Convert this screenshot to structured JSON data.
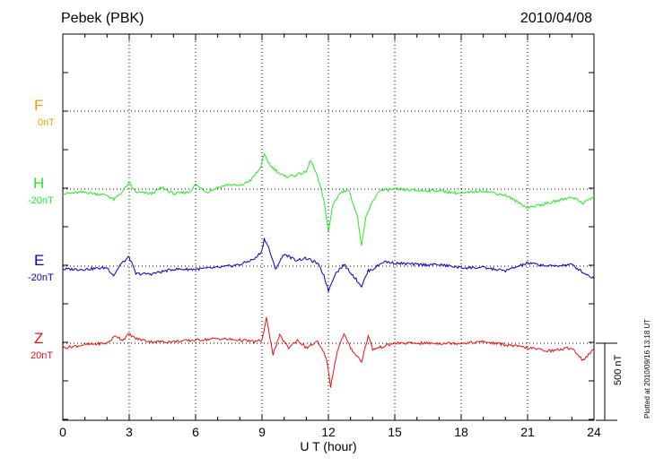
{
  "header": {
    "station": "Pebek (PBK)",
    "date": "2010/04/08"
  },
  "x_axis": {
    "label": "U T (hour)",
    "ticks": [
      "0",
      "3",
      "6",
      "9",
      "12",
      "15",
      "18",
      "21",
      "24"
    ]
  },
  "scale": {
    "label": "500 nT",
    "value_nT": 500
  },
  "footer": {
    "plotted": "Plotted at 2010/09/16 13:18 UT"
  },
  "colors": {
    "F": "#f0a000",
    "H": "#22ee22",
    "E": "#0000cc",
    "Z": "#ee1111"
  },
  "chart_data": {
    "type": "line",
    "xlabel": "U T (hour)",
    "xlim": [
      0,
      24
    ],
    "series": [
      {
        "name": "F",
        "baseline": "0nT",
        "values": []
      },
      {
        "name": "H",
        "baseline": "-20nT",
        "points": [
          [
            0,
            -30
          ],
          [
            1,
            -20
          ],
          [
            2,
            -40
          ],
          [
            2.3,
            -70
          ],
          [
            2.6,
            -30
          ],
          [
            3,
            40
          ],
          [
            3.3,
            -20
          ],
          [
            4,
            -30
          ],
          [
            4.5,
            10
          ],
          [
            5,
            -30
          ],
          [
            5.7,
            -20
          ],
          [
            6,
            30
          ],
          [
            6.5,
            -20
          ],
          [
            7,
            10
          ],
          [
            7.5,
            30
          ],
          [
            8,
            20
          ],
          [
            8.5,
            60
          ],
          [
            8.9,
            130
          ],
          [
            9.1,
            220
          ],
          [
            9.4,
            150
          ],
          [
            10,
            80
          ],
          [
            10.5,
            90
          ],
          [
            11,
            110
          ],
          [
            11.2,
            190
          ],
          [
            11.5,
            80
          ],
          [
            11.8,
            -70
          ],
          [
            12,
            -280
          ],
          [
            12.2,
            -100
          ],
          [
            12.5,
            -30
          ],
          [
            12.9,
            0
          ],
          [
            13.3,
            -170
          ],
          [
            13.5,
            -370
          ],
          [
            13.7,
            -180
          ],
          [
            14,
            -80
          ],
          [
            14.3,
            -10
          ],
          [
            15,
            0
          ],
          [
            16,
            -10
          ],
          [
            17,
            -10
          ],
          [
            18,
            -30
          ],
          [
            19,
            -10
          ],
          [
            20,
            -40
          ],
          [
            21,
            -120
          ],
          [
            22,
            -90
          ],
          [
            23,
            -50
          ],
          [
            23.5,
            -90
          ],
          [
            24,
            -50
          ]
        ]
      },
      {
        "name": "E",
        "baseline": "-20nT",
        "points": [
          [
            0,
            -20
          ],
          [
            1,
            -20
          ],
          [
            2,
            -10
          ],
          [
            2.3,
            -60
          ],
          [
            2.6,
            10
          ],
          [
            3,
            60
          ],
          [
            3.3,
            -50
          ],
          [
            4,
            -50
          ],
          [
            5,
            -20
          ],
          [
            6,
            -20
          ],
          [
            7,
            -10
          ],
          [
            8,
            10
          ],
          [
            8.7,
            50
          ],
          [
            9,
            100
          ],
          [
            9.1,
            180
          ],
          [
            9.3,
            120
          ],
          [
            9.6,
            -20
          ],
          [
            10,
            80
          ],
          [
            10.5,
            40
          ],
          [
            11,
            50
          ],
          [
            11.5,
            20
          ],
          [
            11.8,
            -60
          ],
          [
            12,
            -160
          ],
          [
            12.3,
            -50
          ],
          [
            12.7,
            10
          ],
          [
            13,
            -40
          ],
          [
            13.5,
            -130
          ],
          [
            13.8,
            -30
          ],
          [
            14,
            -20
          ],
          [
            14.5,
            30
          ],
          [
            15,
            20
          ],
          [
            16,
            10
          ],
          [
            17,
            10
          ],
          [
            18,
            -10
          ],
          [
            19,
            -10
          ],
          [
            20,
            -30
          ],
          [
            21,
            20
          ],
          [
            22,
            0
          ],
          [
            23,
            10
          ],
          [
            23.5,
            -40
          ],
          [
            24,
            -80
          ]
        ]
      },
      {
        "name": "Z",
        "baseline": "20nT",
        "points": [
          [
            0,
            -30
          ],
          [
            1,
            -10
          ],
          [
            2,
            0
          ],
          [
            2.4,
            50
          ],
          [
            2.7,
            20
          ],
          [
            3,
            60
          ],
          [
            3.3,
            30
          ],
          [
            4,
            10
          ],
          [
            5,
            10
          ],
          [
            6,
            20
          ],
          [
            7,
            30
          ],
          [
            8,
            20
          ],
          [
            8.7,
            10
          ],
          [
            9,
            20
          ],
          [
            9.2,
            160
          ],
          [
            9.5,
            -70
          ],
          [
            9.8,
            50
          ],
          [
            10.2,
            -30
          ],
          [
            10.6,
            20
          ],
          [
            11,
            -30
          ],
          [
            11.5,
            10
          ],
          [
            11.9,
            -90
          ],
          [
            12.1,
            -280
          ],
          [
            12.4,
            -50
          ],
          [
            12.7,
            60
          ],
          [
            13,
            -30
          ],
          [
            13.5,
            -120
          ],
          [
            13.8,
            50
          ],
          [
            14,
            -40
          ],
          [
            15,
            0
          ],
          [
            16,
            0
          ],
          [
            17,
            0
          ],
          [
            18,
            0
          ],
          [
            19,
            10
          ],
          [
            20,
            -10
          ],
          [
            21,
            -30
          ],
          [
            22,
            -50
          ],
          [
            23,
            -30
          ],
          [
            23.5,
            -110
          ],
          [
            24,
            -40
          ]
        ]
      }
    ]
  }
}
